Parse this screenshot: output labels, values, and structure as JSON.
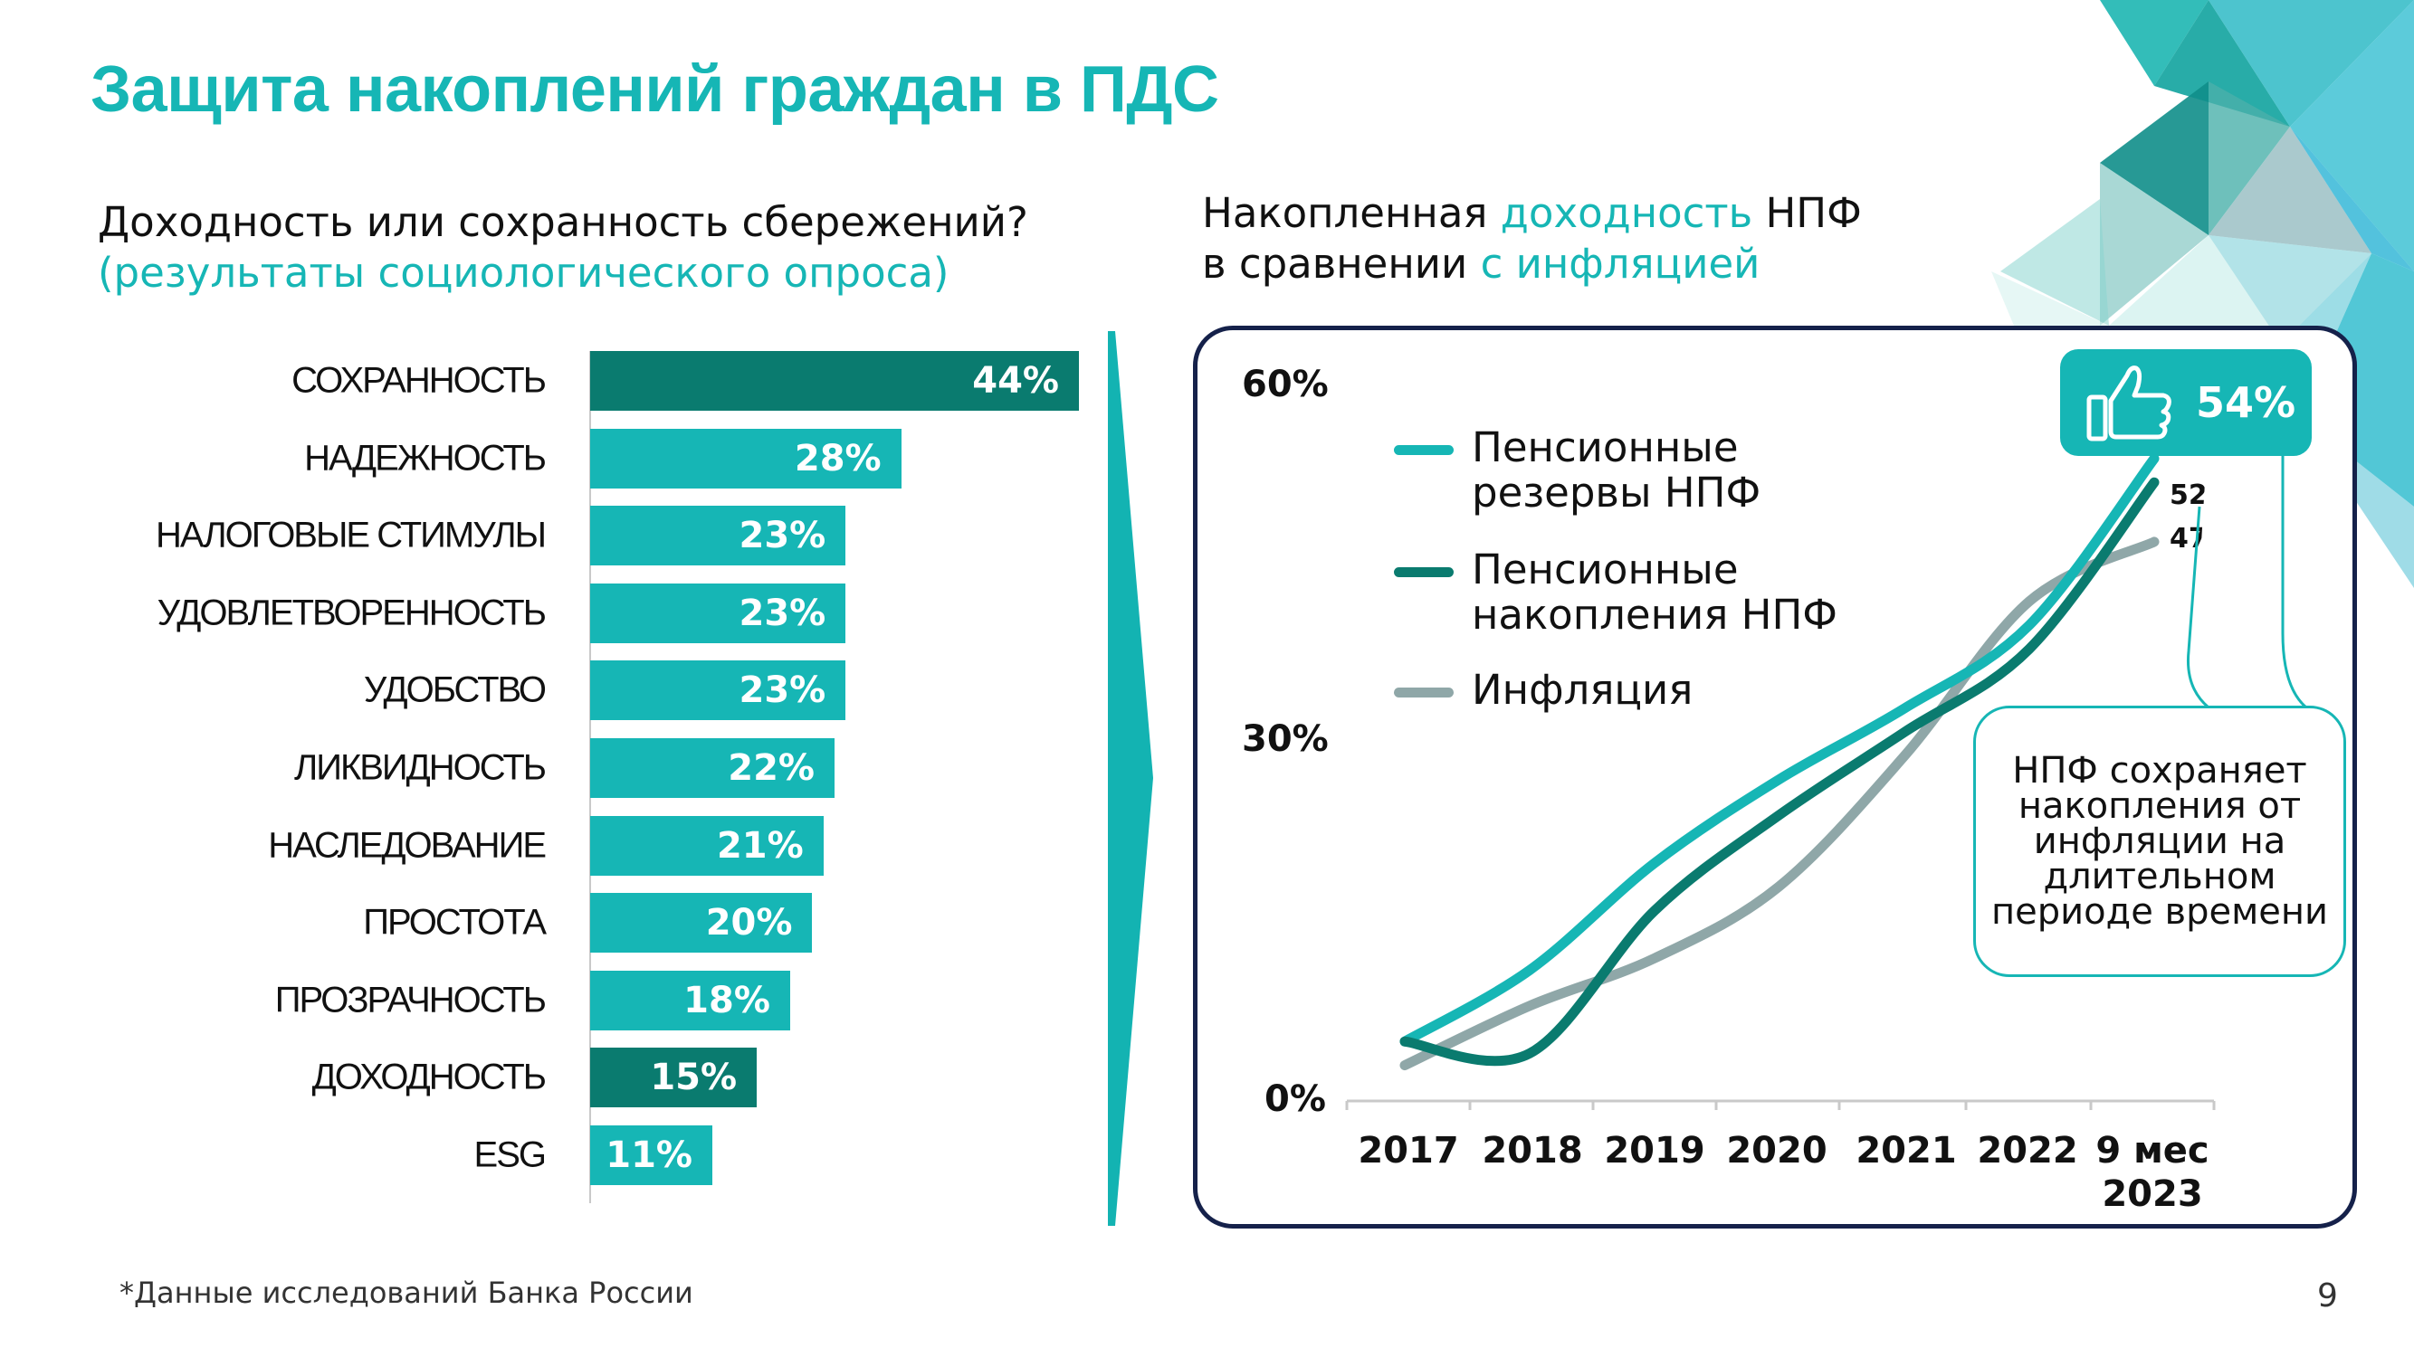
{
  "title": "Защита накоплений граждан в ПДС",
  "left_section": {
    "heading_line1": "Доходность или сохранность сбережений?",
    "heading_line2": "(результаты социологического опроса)"
  },
  "right_section": {
    "heading_line1_a": "Накопленная ",
    "heading_line1_b": "доходность",
    "heading_line1_c": " НПФ",
    "heading_line2_a": "в сравнении ",
    "heading_line2_b": "с инфляцией"
  },
  "callout": {
    "badge_value": "54%",
    "badge_icon": "thumbs-up-icon",
    "text": "НПФ сохраняет накопления от инфляции на длительном периоде времени"
  },
  "footnote": "*Данные исследований Банка России",
  "page_number": "9",
  "colors": {
    "teal": "#16b6b5",
    "dark_teal": "#0a7b6f",
    "gray": "#8fa7a8",
    "navy": "#15214a"
  },
  "chart_data": [
    {
      "type": "bar",
      "orientation": "horizontal",
      "categories": [
        "СОХРАННОСТЬ",
        "НАДЕЖНОСТЬ",
        "НАЛОГОВЫЕ СТИМУЛЫ",
        "УДОВЛЕТВОРЕННОСТЬ",
        "УДОБСТВО",
        "ЛИКВИДНОСТЬ",
        "НАСЛЕДОВАНИЕ",
        "ПРОСТОТА",
        "ПРОЗРАЧНОСТЬ",
        "ДОХОДНОСТЬ",
        "ESG"
      ],
      "values": [
        44,
        28,
        23,
        23,
        23,
        22,
        21,
        20,
        18,
        15,
        11
      ],
      "value_labels": [
        "44%",
        "28%",
        "23%",
        "23%",
        "23%",
        "22%",
        "21%",
        "20%",
        "18%",
        "15%",
        "11%"
      ],
      "highlighted": [
        true,
        false,
        false,
        false,
        false,
        false,
        false,
        false,
        false,
        true,
        false
      ],
      "highlight_color": "#0a7b6f",
      "bar_color": "#16b6b5",
      "xlim": [
        0,
        44
      ]
    },
    {
      "type": "line",
      "x": [
        "2017",
        "2018",
        "2019",
        "2020",
        "2021",
        "2022",
        "9 мес 2023"
      ],
      "y_tick_labels": [
        "0%",
        "30%",
        "60%"
      ],
      "ylim": [
        0,
        60
      ],
      "legend_position": "top-left",
      "grid": false,
      "series": [
        {
          "name": "Пенсионные резервы НПФ",
          "color": "#16b6b5",
          "values": [
            5,
            11,
            20,
            27,
            33,
            40,
            54
          ]
        },
        {
          "name": "Пенсионные накопления НПФ",
          "color": "#0a7b6f",
          "values": [
            5,
            4,
            16,
            24,
            31,
            38,
            52
          ],
          "end_label": "52%"
        },
        {
          "name": "Инфляция",
          "color": "#8fa7a8",
          "values": [
            3,
            8,
            12,
            18,
            29,
            42,
            47
          ],
          "end_label": "47%"
        }
      ]
    }
  ]
}
